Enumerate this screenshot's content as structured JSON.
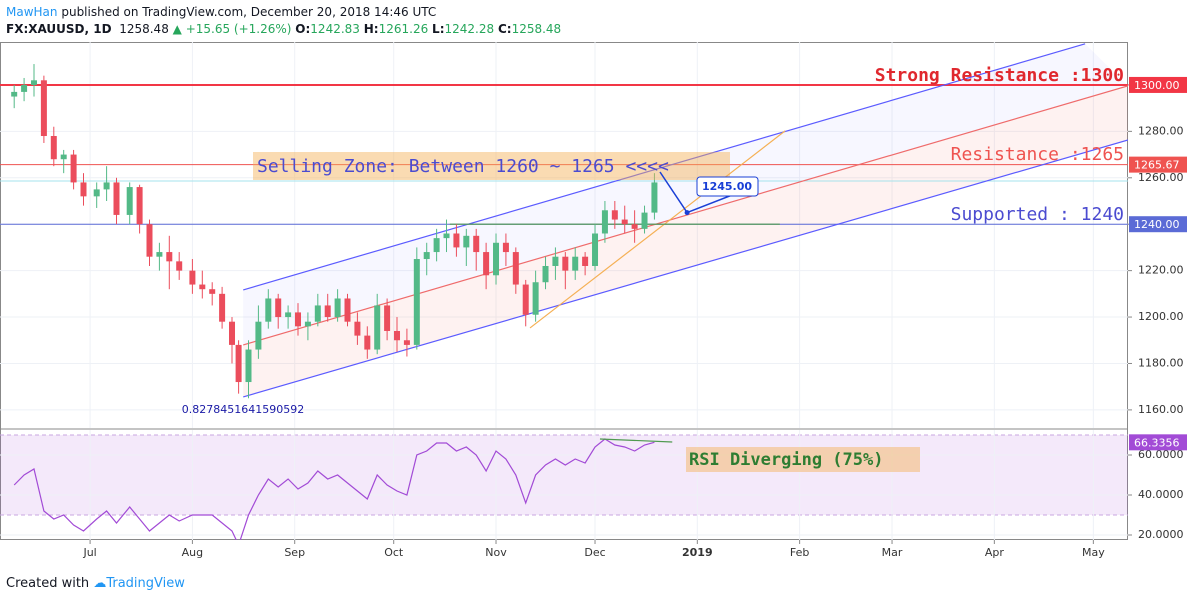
{
  "header": {
    "author": "MawHan",
    "published": "published on TradingView.com, December 20, 2018 14:46 UTC",
    "symbol": "FX:XAUUSD, 1D",
    "last": 1258.48,
    "change": "+15.65 (+1.26%)",
    "o_label": "O:",
    "open": 1242.83,
    "h_label": "H:",
    "high": 1261.26,
    "l_label": "L:",
    "low": 1242.28,
    "c_label": "C:",
    "close": 1258.48
  },
  "footer": {
    "created": "Created with",
    "brand": "TradingView"
  },
  "chart_data": [
    {
      "type": "candlestick",
      "up_color": "#53b987",
      "down_color": "#eb4d5c",
      "x": [
        7,
        10,
        13,
        16,
        19,
        22,
        25,
        28,
        32,
        35,
        38,
        42,
        45,
        48,
        51,
        54,
        57,
        61,
        64,
        67,
        70,
        73,
        75,
        78,
        81,
        84,
        87,
        90,
        93,
        96,
        99,
        102,
        105,
        108,
        111,
        114,
        117,
        120,
        123,
        126,
        129,
        132,
        135,
        138,
        141,
        144,
        147,
        150,
        153,
        156,
        159,
        162,
        165,
        168,
        171,
        174,
        177,
        180,
        183,
        186,
        189,
        192,
        195,
        198,
        201
      ],
      "open": [
        1295,
        1297,
        1300,
        1302,
        1278,
        1268,
        1270,
        1258,
        1252,
        1255,
        1258,
        1244,
        1256,
        1240,
        1226,
        1228,
        1224,
        1220,
        1214,
        1212,
        1210,
        1198,
        1188,
        1172,
        1186,
        1198,
        1208,
        1200,
        1202,
        1196,
        1198,
        1205,
        1200,
        1208,
        1198,
        1192,
        1186,
        1205,
        1194,
        1190,
        1188,
        1225,
        1228,
        1234,
        1236,
        1230,
        1235,
        1228,
        1218,
        1232,
        1228,
        1214,
        1201,
        1215,
        1222,
        1226,
        1220,
        1226,
        1222,
        1236,
        1246,
        1242,
        1240,
        1238,
        1245
      ],
      "high": [
        1300,
        1303,
        1309,
        1304,
        1282,
        1272,
        1272,
        1262,
        1258,
        1265,
        1260,
        1258,
        1257,
        1242,
        1232,
        1235,
        1228,
        1225,
        1220,
        1215,
        1213,
        1200,
        1190,
        1190,
        1205,
        1212,
        1210,
        1205,
        1206,
        1202,
        1210,
        1210,
        1212,
        1210,
        1202,
        1196,
        1210,
        1208,
        1200,
        1195,
        1230,
        1232,
        1238,
        1242,
        1240,
        1238,
        1238,
        1232,
        1236,
        1236,
        1230,
        1216,
        1220,
        1226,
        1230,
        1228,
        1230,
        1228,
        1240,
        1250,
        1250,
        1248,
        1246,
        1248,
        1262
      ],
      "low": [
        1290,
        1293,
        1295,
        1275,
        1265,
        1262,
        1255,
        1248,
        1247,
        1250,
        1240,
        1240,
        1236,
        1222,
        1220,
        1212,
        1216,
        1210,
        1208,
        1205,
        1195,
        1180,
        1167,
        1165,
        1182,
        1195,
        1195,
        1195,
        1192,
        1190,
        1196,
        1198,
        1198,
        1196,
        1188,
        1182,
        1184,
        1190,
        1185,
        1183,
        1186,
        1218,
        1224,
        1228,
        1226,
        1222,
        1220,
        1212,
        1214,
        1222,
        1210,
        1196,
        1198,
        1212,
        1216,
        1212,
        1216,
        1218,
        1220,
        1232,
        1238,
        1236,
        1232,
        1236,
        1242
      ],
      "close": [
        1297,
        1300,
        1302,
        1278,
        1268,
        1270,
        1258,
        1252,
        1255,
        1258,
        1244,
        1256,
        1240,
        1226,
        1228,
        1224,
        1220,
        1214,
        1212,
        1210,
        1198,
        1188,
        1172,
        1186,
        1198,
        1208,
        1200,
        1202,
        1196,
        1198,
        1205,
        1200,
        1208,
        1198,
        1192,
        1186,
        1205,
        1194,
        1190,
        1188,
        1225,
        1228,
        1234,
        1236,
        1230,
        1235,
        1228,
        1218,
        1232,
        1228,
        1214,
        1201,
        1215,
        1222,
        1226,
        1220,
        1226,
        1222,
        1236,
        1246,
        1242,
        1240,
        1238,
        1245,
        1258
      ],
      "xlim": [
        2.7,
        344.5
      ],
      "ylim": [
        1152.2,
        1318.5
      ],
      "yticks": [
        {
          "value": 1160,
          "label": "1160.00"
        },
        {
          "value": 1180,
          "label": "1180.00"
        },
        {
          "value": 1200,
          "label": "1200.00"
        },
        {
          "value": 1220,
          "label": "1220.00"
        },
        {
          "value": 1240,
          "label": "1240.00"
        },
        {
          "value": 1260,
          "label": "1260.00"
        },
        {
          "value": 1280,
          "label": "1280.00"
        },
        {
          "value": 1300,
          "label": "1300.00"
        }
      ],
      "levels": [
        {
          "value": 1300,
          "label": "1300.00",
          "color": "#f23645"
        },
        {
          "value": 1265.67,
          "label": "1265.67",
          "color": "#ef5350"
        },
        {
          "value": 1240,
          "label": "1240.00",
          "color": "#5b6bd6"
        },
        {
          "value": 1258.6,
          "color": "#a5e3ec"
        }
      ],
      "trendlines": [
        {
          "x": [
            76.4,
            331.5
          ],
          "y": [
            1211.7,
            1317.7
          ],
          "color": "#5b5bff"
        },
        {
          "x": [
            76.4,
            344.5
          ],
          "y": [
            1188,
            1299.6
          ],
          "color": "#ef6b6b"
        },
        {
          "x": [
            76.4,
            344.5
          ],
          "y": [
            1165.6,
            1276.3
          ],
          "color": "#5b5bff"
        },
        {
          "x": [
            163.3,
            240.6
          ],
          "y": [
            1195.3,
            1280.2
          ],
          "color": "#f5b054"
        },
        {
          "x": [
            139,
            239
          ],
          "y": [
            1240,
            1240
          ],
          "color": "#4f9a4f"
        }
      ],
      "callout": {
        "value": 1245,
        "label": "1245.00",
        "x": 210.9
      },
      "fib_label": "0.8278451641590592",
      "sell_zone": "Selling Zone: Between 1260 ~ 1265  <<<<",
      "strong_resistance": "Strong Resistance :1300",
      "resistance": "Resistance :1265",
      "support": "Supported : 1240"
    },
    {
      "type": "line",
      "name": "RSI",
      "color": "#a24bd6",
      "x": [
        7,
        10,
        13,
        16,
        19,
        22,
        25,
        28,
        32,
        35,
        38,
        42,
        45,
        48,
        51,
        54,
        57,
        61,
        64,
        67,
        70,
        73,
        75,
        78,
        81,
        84,
        87,
        90,
        93,
        96,
        99,
        102,
        105,
        108,
        111,
        114,
        117,
        120,
        123,
        126,
        129,
        132,
        135,
        138,
        141,
        144,
        147,
        150,
        153,
        156,
        159,
        162,
        165,
        168,
        171,
        174,
        177,
        180,
        183,
        186,
        189,
        192,
        195,
        198,
        201
      ],
      "values": [
        45,
        50,
        53,
        32,
        28,
        30,
        25,
        22,
        28,
        32,
        26,
        34,
        28,
        22,
        26,
        30,
        27,
        30,
        30,
        30,
        26,
        22,
        15,
        30,
        40,
        48,
        44,
        48,
        43,
        46,
        52,
        48,
        50,
        46,
        42,
        38,
        50,
        45,
        42,
        40,
        60,
        62,
        66,
        66,
        62,
        64,
        60,
        52,
        62,
        58,
        50,
        36,
        50,
        55,
        58,
        55,
        58,
        56,
        64,
        68,
        65,
        64,
        62,
        65,
        66.3356
      ],
      "last_label": {
        "value": 66.3356,
        "label": "66.3356"
      },
      "band": [
        30,
        70
      ],
      "xlim": [
        2.7,
        344.5
      ],
      "ylim": [
        17.5,
        72.5
      ],
      "yticks": [
        {
          "value": 20,
          "label": "20.0000"
        },
        {
          "value": 40,
          "label": "40.0000"
        },
        {
          "value": 60,
          "label": "60.0000"
        }
      ],
      "xticks": [
        {
          "value": 30,
          "label": "Jul"
        },
        {
          "value": 61,
          "label": "Aug"
        },
        {
          "value": 92,
          "label": "Sep"
        },
        {
          "value": 122,
          "label": "Oct"
        },
        {
          "value": 153,
          "label": "Nov"
        },
        {
          "value": 183,
          "label": "Dec"
        },
        {
          "value": 214,
          "label": "2019"
        },
        {
          "value": 245,
          "label": "Feb"
        },
        {
          "value": 273,
          "label": "Mar"
        },
        {
          "value": 304,
          "label": "Apr"
        },
        {
          "value": 334,
          "label": "May"
        }
      ],
      "divergence": {
        "x": [
          184.5,
          206.4
        ],
        "y": [
          68,
          66.5
        ]
      },
      "annotation": "RSI Diverging (75%)"
    }
  ]
}
